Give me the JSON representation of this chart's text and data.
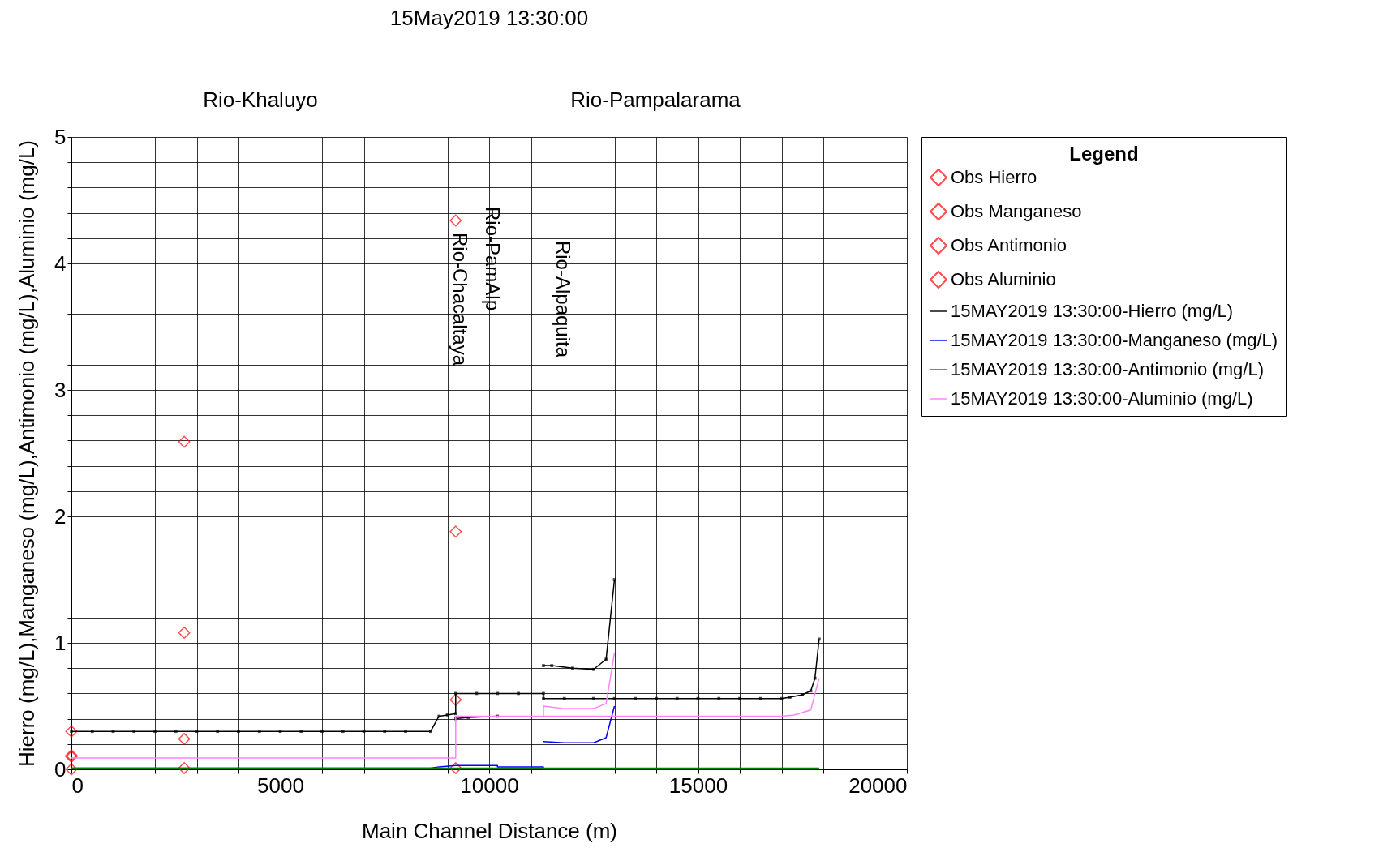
{
  "chart_data": {
    "type": "line",
    "title": "15May2019 13:30:00",
    "xlabel": "Main Channel Distance (m)",
    "ylabel": "Hierro (mg/L),Manganeso (mg/L),Antimonio (mg/L),Aluminio (mg/L)",
    "legend_title": "Legend",
    "legend": "right",
    "grid": true,
    "xlim": [
      0,
      20000
    ],
    "ylim": [
      0,
      5
    ],
    "xticks": [
      0,
      {
        "value": 1000,
        "label": null
      },
      {
        "value": 2000,
        "label": null
      },
      {
        "value": 3000,
        "label": null
      },
      {
        "value": 4000,
        "label": null
      },
      5000,
      {
        "value": 6000,
        "label": null
      },
      {
        "value": 7000,
        "label": null
      },
      {
        "value": 8000,
        "label": null
      },
      {
        "value": 9000,
        "label": null
      },
      10000,
      {
        "value": 11000,
        "label": null
      },
      {
        "value": 12000,
        "label": null
      },
      {
        "value": 13000,
        "label": null
      },
      {
        "value": 14000,
        "label": null
      },
      15000,
      {
        "value": 16000,
        "label": null
      },
      {
        "value": 17000,
        "label": null
      },
      {
        "value": 18000,
        "label": null
      },
      {
        "value": 19000,
        "label": null
      },
      20000
    ],
    "yticks": [
      0,
      {
        "value": 0.2,
        "label": null
      },
      {
        "value": 0.4,
        "label": null
      },
      {
        "value": 0.6,
        "label": null
      },
      {
        "value": 0.8,
        "label": null
      },
      1,
      {
        "value": 1.2,
        "label": null
      },
      {
        "value": 1.4,
        "label": null
      },
      {
        "value": 1.6,
        "label": null
      },
      {
        "value": 1.8,
        "label": null
      },
      2,
      {
        "value": 2.2,
        "label": null
      },
      {
        "value": 2.4,
        "label": null
      },
      {
        "value": 2.6,
        "label": null
      },
      {
        "value": 2.8,
        "label": null
      },
      3,
      {
        "value": 3.2,
        "label": null
      },
      {
        "value": 3.4,
        "label": null
      },
      {
        "value": 3.6,
        "label": null
      },
      {
        "value": 3.8,
        "label": null
      },
      4,
      {
        "value": 4.2,
        "label": null
      },
      {
        "value": 4.4,
        "label": null
      },
      {
        "value": 4.6,
        "label": null
      },
      {
        "value": 4.8,
        "label": null
      },
      5
    ],
    "annotations": [
      "Rio-Khaluyo",
      "Rio-Pampalarama",
      "Rio-Chacaltaya",
      "Rio-PamAlp",
      "Rio-Alpaquita"
    ],
    "series": [
      {
        "name": "Obs Hierro",
        "type": "scatter",
        "marker": "diamond",
        "color": "#ff0000",
        "x": [
          0,
          2700,
          9200
        ],
        "values": [
          0.3,
          2.59,
          4.34
        ]
      },
      {
        "name": "Obs Manganeso",
        "type": "scatter",
        "marker": "diamond",
        "color": "#ff0000",
        "x": [
          0,
          2700,
          9200
        ],
        "values": [
          0.11,
          0.24,
          0.55
        ]
      },
      {
        "name": "Obs Antimonio",
        "type": "scatter",
        "marker": "diamond",
        "color": "#ff0000",
        "x": [
          0,
          2700,
          9200
        ],
        "values": [
          0.0,
          0.01,
          0.01
        ]
      },
      {
        "name": "Obs Aluminio",
        "type": "scatter",
        "marker": "diamond",
        "color": "#ff0000",
        "x": [
          0,
          2700,
          9200
        ],
        "values": [
          0.1,
          1.08,
          1.88
        ]
      },
      {
        "name": "15MAY2019 13:30:00-Hierro (mg/L)",
        "marker": "square",
        "color": "#000000",
        "x": [
          0,
          500,
          1000,
          1500,
          2000,
          2500,
          3000,
          3500,
          4000,
          4500,
          5000,
          5500,
          6000,
          6500,
          7000,
          7500,
          8000,
          8600,
          8800,
          9000,
          9200,
          9200,
          9700,
          10200,
          10700,
          11300,
          11300,
          11800,
          12500,
          13000,
          13500,
          14000,
          14500,
          15000,
          15500,
          16000,
          16500,
          17000,
          17200,
          17500,
          17700,
          17800,
          17900,
          null,
          9200,
          9500,
          10200,
          null,
          11300,
          11500,
          12000,
          12500,
          12800,
          13000
        ],
        "values": [
          0.3,
          0.3,
          0.3,
          0.3,
          0.3,
          0.3,
          0.3,
          0.3,
          0.3,
          0.3,
          0.3,
          0.3,
          0.3,
          0.3,
          0.3,
          0.3,
          0.3,
          0.3,
          0.42,
          0.43,
          0.44,
          0.6,
          0.6,
          0.6,
          0.6,
          0.6,
          0.56,
          0.56,
          0.56,
          0.56,
          0.56,
          0.56,
          0.56,
          0.56,
          0.56,
          0.56,
          0.56,
          0.56,
          0.57,
          0.59,
          0.62,
          0.72,
          1.03,
          null,
          0.4,
          0.41,
          0.42,
          null,
          0.82,
          0.82,
          0.8,
          0.79,
          0.87,
          1.5
        ]
      },
      {
        "name": "15MAY2019 13:30:00-Manganeso (mg/L)",
        "color": "#0000ff",
        "x": [
          0,
          8600,
          8800,
          9200,
          10200,
          10200,
          11300,
          11300,
          17900,
          null,
          11300,
          11800,
          12500,
          12800,
          13000
        ],
        "values": [
          0.01,
          0.01,
          0.02,
          0.03,
          0.03,
          0.02,
          0.02,
          0.0,
          0.0,
          null,
          0.22,
          0.21,
          0.21,
          0.25,
          0.5
        ]
      },
      {
        "name": "15MAY2019 13:30:00-Antimonio (mg/L)",
        "color": "#008000",
        "x": [
          0,
          17900
        ],
        "values": [
          0.01,
          0.01
        ]
      },
      {
        "name": "15MAY2019 13:30:00-Aluminio (mg/L)",
        "color": "#ff80ff",
        "x": [
          0,
          9200,
          9200,
          11300,
          17000,
          17300,
          17700,
          17900,
          null,
          11300,
          11300,
          11800,
          12500,
          12800,
          13000
        ],
        "values": [
          0.09,
          0.09,
          0.42,
          0.42,
          0.42,
          0.43,
          0.47,
          0.72,
          null,
          0.42,
          0.5,
          0.48,
          0.48,
          0.52,
          0.92
        ]
      }
    ]
  }
}
